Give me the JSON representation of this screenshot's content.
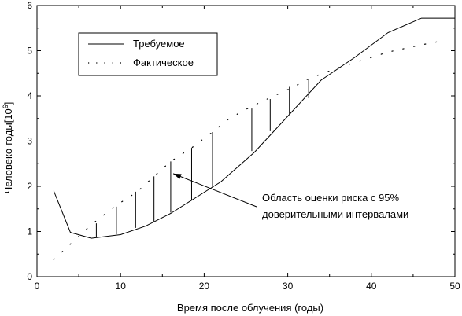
{
  "chart_data": {
    "type": "line",
    "xlabel": "Время после облучения (годы)",
    "ylabel_main": "Человеко-годы[10",
    "ylabel_sup": "6",
    "ylabel_end": "]",
    "xlim": [
      0,
      50
    ],
    "ylim": [
      0,
      6
    ],
    "xticks": [
      0,
      10,
      20,
      30,
      40,
      50
    ],
    "yticks": [
      0,
      1,
      2,
      3,
      4,
      5,
      6
    ],
    "grid": false,
    "legend_position": "top-left",
    "series": [
      {
        "name": "Требуемое",
        "style": "solid",
        "x": [
          2,
          4,
          6.5,
          10,
          13,
          16,
          19,
          22,
          26,
          30,
          34,
          38,
          42,
          46,
          50
        ],
        "y": [
          1.9,
          0.98,
          0.85,
          0.93,
          1.12,
          1.4,
          1.75,
          2.1,
          2.75,
          3.55,
          4.35,
          4.85,
          5.4,
          5.72,
          5.72
        ]
      },
      {
        "name": "Фактическое",
        "style": "dotted",
        "x": [
          2,
          4,
          6.5,
          9.5,
          12,
          14,
          16,
          18.5,
          21,
          23,
          25.5,
          28,
          30.5,
          32.5,
          36,
          40,
          42,
          46,
          48
        ],
        "y": [
          0.38,
          0.72,
          1.15,
          1.58,
          1.88,
          2.22,
          2.55,
          2.85,
          3.2,
          3.5,
          3.75,
          3.97,
          4.18,
          4.38,
          4.62,
          4.85,
          4.97,
          5.13,
          5.2
        ]
      }
    ],
    "interval_bars": [
      {
        "x": 7.1,
        "low": 0.88,
        "high": 1.18
      },
      {
        "x": 9.5,
        "low": 0.94,
        "high": 1.55
      },
      {
        "x": 11.8,
        "low": 1.08,
        "high": 1.88
      },
      {
        "x": 14,
        "low": 1.22,
        "high": 2.22
      },
      {
        "x": 16,
        "low": 1.42,
        "high": 2.55
      },
      {
        "x": 18.5,
        "low": 1.7,
        "high": 2.85
      },
      {
        "x": 21,
        "low": 1.98,
        "high": 3.2
      },
      {
        "x": 25.7,
        "low": 2.78,
        "high": 3.72
      },
      {
        "x": 27.9,
        "low": 3.22,
        "high": 3.93
      },
      {
        "x": 30.2,
        "low": 3.6,
        "high": 4.2
      },
      {
        "x": 32.5,
        "low": 3.95,
        "high": 4.38
      }
    ],
    "annotation": {
      "line1": "Область оценки риска с 95%",
      "line2": "доверительными интервалами",
      "arrow_to": {
        "x": 16.3,
        "y": 2.28
      }
    }
  }
}
